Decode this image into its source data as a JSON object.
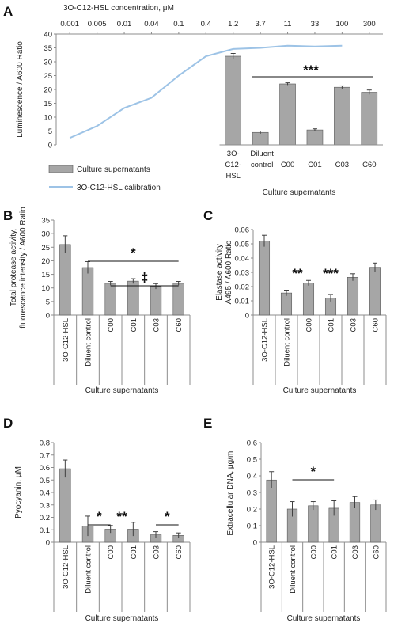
{
  "chart_data": [
    {
      "panel": "A",
      "type": "bar",
      "top_axis_label": "3O-C12-HSL concentration,  μM",
      "top_ticks": [
        "0.001",
        "0.005",
        "0.01",
        "0.04",
        "0.1",
        "0.4",
        "1.2",
        "3.7",
        "11",
        "33",
        "100",
        "300"
      ],
      "ylabel": "Luminescence / A600 Ratio",
      "ylim": [
        0,
        40
      ],
      "yticks": [
        "0",
        "5",
        "10",
        "15",
        "20",
        "25",
        "30",
        "35",
        "40"
      ],
      "xlabel": "Culture supernatants",
      "categories": [
        "3O-C12-HSL",
        "Diluent control",
        "C00",
        "C01",
        "C03",
        "C60"
      ],
      "values": [
        32,
        4.5,
        22,
        5.4,
        20.8,
        19
      ],
      "errors": [
        1.0,
        0.5,
        0.4,
        0.4,
        0.5,
        0.8
      ],
      "calibration_values": [
        2.5,
        6.8,
        13.3,
        17,
        25,
        32,
        34.6,
        35,
        35.8,
        35.5,
        35.8
      ],
      "significance": [
        "***"
      ],
      "legend": [
        "Culture supernatants",
        "3O-C12-HSL calibration"
      ],
      "colors": {
        "bar": "#a6a6a6",
        "line": "#9dc3e6",
        "error": "#404040"
      }
    },
    {
      "panel": "B",
      "type": "bar",
      "ylabel_line1": "Total protease activity,",
      "ylabel_line2": "fluorescence intensity / A600 Ratio",
      "ylim": [
        0,
        35
      ],
      "yticks": [
        "0",
        "5",
        "10",
        "15",
        "20",
        "25",
        "30",
        "35"
      ],
      "xlabel": "Culture supernatants",
      "categories": [
        "3O-C12-HSL",
        "Diluent control",
        "C00",
        "C01",
        "C03",
        "C60"
      ],
      "values": [
        26,
        17.5,
        11.7,
        12.5,
        10.6,
        11.7
      ],
      "errors": [
        3.2,
        2.2,
        0.7,
        0.9,
        1.0,
        0.7
      ],
      "significance": [
        "*",
        "‡"
      ]
    },
    {
      "panel": "C",
      "type": "bar",
      "ylabel_line1": "Elastase activity",
      "ylabel_line2": "A495 / A600 Ratio",
      "ylim": [
        0,
        0.06
      ],
      "yticks": [
        "0",
        "0.01",
        "0.02",
        "0.03",
        "0.04",
        "0.05",
        "0.06"
      ],
      "xlabel": "Culture supernatants",
      "categories": [
        "3O-C12-HSL",
        "Diluent control",
        "C00",
        "C01",
        "C03",
        "C60"
      ],
      "values": [
        0.052,
        0.0155,
        0.0225,
        0.012,
        0.0265,
        0.0335
      ],
      "errors": [
        0.004,
        0.002,
        0.0018,
        0.0025,
        0.0025,
        0.003
      ],
      "significance": [
        "**",
        "***"
      ]
    },
    {
      "panel": "D",
      "type": "bar",
      "ylabel": "Pyocyanin, μM",
      "ylim": [
        0,
        0.8
      ],
      "yticks": [
        "0",
        "0.1",
        "0.2",
        "0.3",
        "0.4",
        "0.5",
        "0.6",
        "0.7",
        "0.8"
      ],
      "xlabel": "Culture supernatants",
      "categories": [
        "3O-C12-HSL",
        "Diluent control",
        "C00",
        "C01",
        "C03",
        "C60"
      ],
      "values": [
        0.59,
        0.13,
        0.105,
        0.105,
        0.06,
        0.055
      ],
      "errors": [
        0.07,
        0.08,
        0.03,
        0.055,
        0.025,
        0.02
      ],
      "significance": [
        "*",
        "**",
        "*"
      ]
    },
    {
      "panel": "E",
      "type": "bar",
      "ylabel": "Extracellular DNA, μg/ml",
      "ylim": [
        0,
        0.6
      ],
      "yticks": [
        "0",
        "0.1",
        "0.2",
        "0.3",
        "0.4",
        "0.5",
        "0.6"
      ],
      "xlabel": "Culture supernatants",
      "categories": [
        "3O-C12-HSL",
        "Diluent control",
        "C00",
        "C01",
        "C03",
        "C60"
      ],
      "values": [
        0.375,
        0.2,
        0.22,
        0.205,
        0.24,
        0.225
      ],
      "errors": [
        0.05,
        0.045,
        0.025,
        0.045,
        0.035,
        0.03
      ],
      "significance": [
        "*"
      ]
    }
  ]
}
